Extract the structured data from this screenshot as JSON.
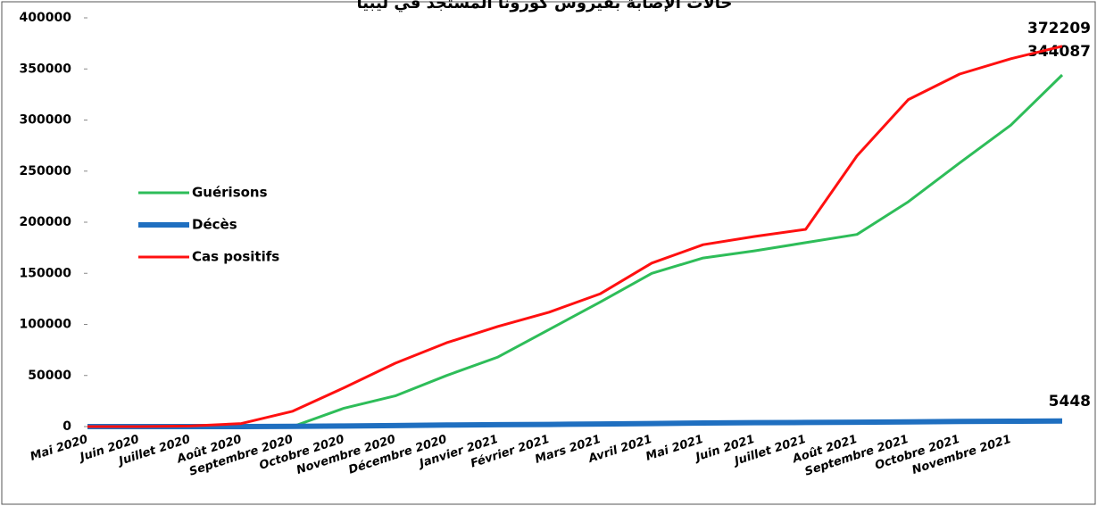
{
  "chart_data": {
    "type": "line",
    "title": "حالات الإصابة بفيروس كورونا المستجد في ليبيا",
    "categories": [
      "Mai 2020",
      "Juin 2020",
      "Juillet 2020",
      "Août 2020",
      "Septembre 2020",
      "Octobre 2020",
      "Novembre 2020",
      "Décembre 2020",
      "Janvier 2021",
      "Février 2021",
      "Mars 2021",
      "Avril 2021",
      "Mai 2021",
      "Juin 2021",
      "Juillet 2021",
      "Août 2021",
      "Septembre 2021",
      "Octobre 2021",
      "Novembre 2021",
      null
    ],
    "series": [
      {
        "name": "Guérisons",
        "color": "#2ebd59",
        "values": [
          0,
          0,
          0,
          0,
          0,
          18000,
          30000,
          50000,
          68000,
          95000,
          122000,
          150000,
          165000,
          172000,
          180000,
          188000,
          220000,
          258000,
          295000,
          344087
        ]
      },
      {
        "name": "Décès",
        "color": "#1f6fc0",
        "values": [
          0,
          0,
          0,
          0,
          200,
          500,
          1000,
          1500,
          1800,
          2100,
          2500,
          3000,
          3500,
          3800,
          4000,
          4300,
          4600,
          5000,
          5200,
          5448
        ]
      },
      {
        "name": "Cas positifs",
        "color": "#ff1010",
        "values": [
          0,
          0,
          500,
          3000,
          15000,
          38000,
          62000,
          82000,
          98000,
          112000,
          130000,
          160000,
          178000,
          186000,
          193000,
          265000,
          320000,
          345000,
          360000,
          372209
        ]
      }
    ],
    "ylim": [
      0,
      400000
    ],
    "yticks": [
      0,
      50000,
      100000,
      150000,
      200000,
      250000,
      300000,
      350000,
      400000
    ],
    "grid": false,
    "legend": "left"
  }
}
